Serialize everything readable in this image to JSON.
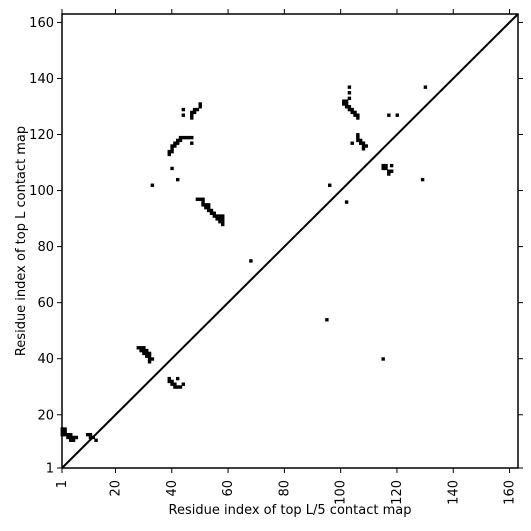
{
  "chart_data": {
    "type": "heatmap",
    "title": "",
    "xlabel": "Residue index of top L/5 contact map",
    "ylabel": "Residue index of top L contact map",
    "xlim": [
      1,
      163
    ],
    "ylim": [
      1,
      163
    ],
    "x_ticks": [
      1,
      20,
      40,
      60,
      80,
      100,
      120,
      140,
      160
    ],
    "y_ticks": [
      1,
      20,
      40,
      60,
      80,
      100,
      120,
      140,
      160
    ],
    "grid": false,
    "diagonal_line": true,
    "contact_color": "#000000",
    "contacts": [
      [
        1,
        14
      ],
      [
        1,
        15
      ],
      [
        1,
        13
      ],
      [
        2,
        14
      ],
      [
        2,
        15
      ],
      [
        2,
        13
      ],
      [
        3,
        12
      ],
      [
        3,
        13
      ],
      [
        4,
        11
      ],
      [
        4,
        12
      ],
      [
        4,
        13
      ],
      [
        5,
        11
      ],
      [
        5,
        12
      ],
      [
        6,
        12
      ],
      [
        10,
        13
      ],
      [
        11,
        13
      ],
      [
        11,
        12
      ],
      [
        12,
        12
      ],
      [
        13,
        11
      ],
      [
        28,
        44
      ],
      [
        29,
        44
      ],
      [
        29,
        43
      ],
      [
        30,
        43
      ],
      [
        30,
        44
      ],
      [
        30,
        42
      ],
      [
        31,
        41
      ],
      [
        31,
        42
      ],
      [
        31,
        43
      ],
      [
        32,
        41
      ],
      [
        32,
        42
      ],
      [
        32,
        40
      ],
      [
        32,
        39
      ],
      [
        33,
        40
      ],
      [
        39,
        33
      ],
      [
        39,
        32
      ],
      [
        40,
        32
      ],
      [
        40,
        31
      ],
      [
        41,
        31
      ],
      [
        41,
        30
      ],
      [
        42,
        30
      ],
      [
        42,
        33
      ],
      [
        43,
        30
      ],
      [
        44,
        31
      ],
      [
        39,
        113
      ],
      [
        39,
        114
      ],
      [
        40,
        114
      ],
      [
        40,
        115
      ],
      [
        40,
        116
      ],
      [
        41,
        116
      ],
      [
        41,
        117
      ],
      [
        42,
        117
      ],
      [
        42,
        118
      ],
      [
        43,
        118
      ],
      [
        43,
        119
      ],
      [
        44,
        119
      ],
      [
        45,
        119
      ],
      [
        46,
        119
      ],
      [
        47,
        119
      ],
      [
        47,
        117
      ],
      [
        40,
        108
      ],
      [
        42,
        104
      ],
      [
        33,
        102
      ],
      [
        44,
        127
      ],
      [
        44,
        129
      ],
      [
        47,
        126
      ],
      [
        47,
        127
      ],
      [
        47,
        128
      ],
      [
        48,
        128
      ],
      [
        48,
        129
      ],
      [
        49,
        129
      ],
      [
        50,
        130
      ],
      [
        50,
        131
      ],
      [
        49,
        97
      ],
      [
        50,
        97
      ],
      [
        51,
        97
      ],
      [
        51,
        96
      ],
      [
        51,
        95
      ],
      [
        52,
        95
      ],
      [
        52,
        94
      ],
      [
        53,
        94
      ],
      [
        53,
        93
      ],
      [
        53,
        95
      ],
      [
        54,
        93
      ],
      [
        54,
        92
      ],
      [
        55,
        92
      ],
      [
        55,
        91
      ],
      [
        56,
        91
      ],
      [
        56,
        90
      ],
      [
        57,
        90
      ],
      [
        57,
        89
      ],
      [
        57,
        91
      ],
      [
        58,
        90
      ],
      [
        58,
        89
      ],
      [
        58,
        88
      ],
      [
        58,
        91
      ],
      [
        68,
        75
      ],
      [
        95,
        54
      ],
      [
        96,
        102
      ],
      [
        102,
        96
      ],
      [
        101,
        132
      ],
      [
        101,
        131
      ],
      [
        102,
        131
      ],
      [
        102,
        130
      ],
      [
        102,
        132
      ],
      [
        103,
        130
      ],
      [
        103,
        129
      ],
      [
        103,
        133
      ],
      [
        103,
        135
      ],
      [
        103,
        137
      ],
      [
        104,
        129
      ],
      [
        104,
        128
      ],
      [
        105,
        128
      ],
      [
        105,
        127
      ],
      [
        106,
        127
      ],
      [
        106,
        126
      ],
      [
        104,
        117
      ],
      [
        106,
        118
      ],
      [
        106,
        119
      ],
      [
        106,
        120
      ],
      [
        107,
        118
      ],
      [
        107,
        117
      ],
      [
        108,
        117
      ],
      [
        108,
        116
      ],
      [
        108,
        115
      ],
      [
        109,
        116
      ],
      [
        115,
        108
      ],
      [
        115,
        109
      ],
      [
        116,
        108
      ],
      [
        116,
        109
      ],
      [
        117,
        107
      ],
      [
        117,
        106
      ],
      [
        118,
        109
      ],
      [
        118,
        107
      ],
      [
        117,
        127
      ],
      [
        120,
        127
      ],
      [
        129,
        104
      ],
      [
        130,
        137
      ],
      [
        115,
        40
      ]
    ]
  }
}
